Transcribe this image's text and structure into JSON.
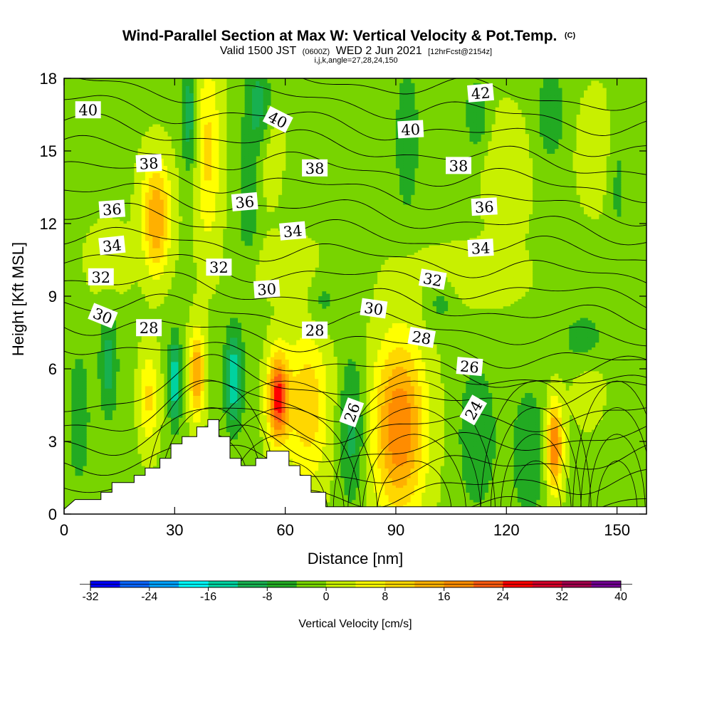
{
  "title": {
    "main": "Wind-Parallel Section at Max W: Vertical Velocity & Pot.Temp.",
    "tag": "(C)",
    "valid_prefix": "Valid 1500 JST",
    "valid_utc": "(0600Z)",
    "valid_date": "WED 2 Jun 2021",
    "forecast": "[12hrFcst@2154z]",
    "indices": "i,j,k,angle=27,28,24,150"
  },
  "chart_data": {
    "type": "heatmap",
    "title": "Wind-Parallel Section at Max W: Vertical Velocity & Pot.Temp.",
    "xlabel": "Distance [nm]",
    "ylabel": "Height [Kft MSL]",
    "xlim": [
      0,
      158
    ],
    "ylim": [
      0,
      18
    ],
    "x_ticks": [
      0,
      30,
      60,
      90,
      120,
      150
    ],
    "x_tick_labels": [
      "0",
      "30",
      "60",
      "90",
      "120",
      "150"
    ],
    "y_ticks": [
      0,
      3,
      6,
      9,
      12,
      15,
      18
    ],
    "y_tick_labels": [
      "0",
      "3",
      "6",
      "9",
      "12",
      "15",
      "18"
    ],
    "colorbar": {
      "title": "Vertical Velocity [cm/s]",
      "levels": [
        -32,
        -28,
        -24,
        -20,
        -16,
        -12,
        -8,
        -4,
        0,
        4,
        8,
        12,
        16,
        20,
        24,
        28,
        32,
        36,
        40
      ],
      "tick_labels": [
        "-32",
        "-24",
        "-16",
        "-8",
        "0",
        "8",
        "16",
        "24",
        "32",
        "40"
      ],
      "colors": [
        "#0000ff",
        "#0a64ff",
        "#00a0ff",
        "#00ffff",
        "#00d2a0",
        "#18b050",
        "#22aa22",
        "#78d400",
        "#c8f000",
        "#ffff00",
        "#ffd700",
        "#ffb000",
        "#ff8c00",
        "#ff5a10",
        "#ff0000",
        "#d20028",
        "#a0004b",
        "#700090"
      ]
    },
    "w_field": {
      "background": -1,
      "cells": [
        {
          "x": 25,
          "z": 12.5,
          "sx": 4,
          "sz": 2.2,
          "amp": 15
        },
        {
          "x": 25,
          "z": 11.0,
          "sx": 2.5,
          "sz": 1.5,
          "amp": 4
        },
        {
          "x": 39,
          "z": 15,
          "sx": 3.5,
          "sz": 4,
          "amp": 10
        },
        {
          "x": 36,
          "z": 5.8,
          "sx": 2,
          "sz": 1.8,
          "amp": 18
        },
        {
          "x": 23,
          "z": 4.8,
          "sx": 2.5,
          "sz": 2,
          "amp": 10
        },
        {
          "x": 58,
          "z": 4.8,
          "sx": 2.8,
          "sz": 1.8,
          "amp": 26
        },
        {
          "x": 66,
          "z": 4.5,
          "sx": 6,
          "sz": 3.2,
          "amp": 12
        },
        {
          "x": 91,
          "z": 3.6,
          "sx": 7,
          "sz": 3.6,
          "amp": 21
        },
        {
          "x": 133,
          "z": 2.8,
          "sx": 2.2,
          "sz": 1.8,
          "amp": 22
        },
        {
          "x": 108,
          "z": 9.8,
          "sx": 15,
          "sz": 1.2,
          "amp": 5
        },
        {
          "x": 60,
          "z": 10.2,
          "sx": 10,
          "sz": 1.2,
          "amp": 4
        },
        {
          "x": 120,
          "z": 14,
          "sx": 6,
          "sz": 2.5,
          "amp": 5
        },
        {
          "x": 145,
          "z": 15,
          "sx": 6,
          "sz": 2.5,
          "amp": 4
        },
        {
          "x": 55,
          "z": 15.5,
          "sx": 4,
          "sz": 2.5,
          "amp": 5
        },
        {
          "x": 12,
          "z": 10.5,
          "sx": 6,
          "sz": 1.5,
          "amp": 4
        },
        {
          "x": 142,
          "z": 5.5,
          "sx": 5,
          "sz": 2,
          "amp": 3
        },
        {
          "x": 30,
          "z": 5.5,
          "sx": 1.6,
          "sz": 1.8,
          "amp": -15
        },
        {
          "x": 46,
          "z": 5.6,
          "sx": 2.4,
          "sz": 2,
          "amp": -15
        },
        {
          "x": 12,
          "z": 6.2,
          "sx": 2.4,
          "sz": 2.2,
          "amp": -9
        },
        {
          "x": 34,
          "z": 16.5,
          "sx": 2,
          "sz": 2.5,
          "amp": -10
        },
        {
          "x": 53,
          "z": 16.8,
          "sx": 3.5,
          "sz": 2,
          "amp": -11
        },
        {
          "x": 50,
          "z": 13,
          "sx": 3,
          "sz": 3,
          "amp": -6
        },
        {
          "x": 78,
          "z": 3.5,
          "sx": 3.5,
          "sz": 3,
          "amp": -9
        },
        {
          "x": 112,
          "z": 3.2,
          "sx": 5,
          "sz": 3,
          "amp": -7
        },
        {
          "x": 126,
          "z": 2.5,
          "sx": 5,
          "sz": 3,
          "amp": -6
        },
        {
          "x": 102,
          "z": 9,
          "sx": 5,
          "sz": 1.2,
          "amp": -6
        },
        {
          "x": 93,
          "z": 15.5,
          "sx": 3,
          "sz": 3,
          "amp": -7
        },
        {
          "x": 112,
          "z": 16.5,
          "sx": 3,
          "sz": 1.5,
          "amp": -7
        },
        {
          "x": 132,
          "z": 16.5,
          "sx": 4,
          "sz": 2,
          "amp": -6
        },
        {
          "x": 150,
          "z": 14,
          "sx": 3,
          "sz": 3,
          "amp": -5
        },
        {
          "x": 141,
          "z": 7.2,
          "sx": 6,
          "sz": 1.2,
          "amp": -6
        },
        {
          "x": 4,
          "z": 4,
          "sx": 3,
          "sz": 3,
          "amp": -6
        },
        {
          "x": 70,
          "z": 8.8,
          "sx": 4,
          "sz": 1.3,
          "amp": -5
        }
      ]
    },
    "terrain": [
      [
        0,
        0.2
      ],
      [
        3,
        0.6
      ],
      [
        10,
        0.6
      ],
      [
        10,
        0.9
      ],
      [
        13,
        0.9
      ],
      [
        13,
        1.3
      ],
      [
        19,
        1.3
      ],
      [
        19,
        1.6
      ],
      [
        22,
        1.6
      ],
      [
        22,
        1.9
      ],
      [
        26,
        1.9
      ],
      [
        26,
        2.3
      ],
      [
        29,
        2.3
      ],
      [
        29,
        2.9
      ],
      [
        32,
        2.9
      ],
      [
        32,
        3.2
      ],
      [
        36,
        3.2
      ],
      [
        36,
        3.6
      ],
      [
        39,
        3.6
      ],
      [
        39,
        3.9
      ],
      [
        42,
        3.9
      ],
      [
        42,
        3.2
      ],
      [
        45,
        3.2
      ],
      [
        45,
        2.3
      ],
      [
        48,
        2.3
      ],
      [
        48,
        2.0
      ],
      [
        52,
        2.0
      ],
      [
        52,
        2.3
      ],
      [
        55,
        2.3
      ],
      [
        55,
        2.6
      ],
      [
        61,
        2.6
      ],
      [
        61,
        2.0
      ],
      [
        64,
        2.0
      ],
      [
        64,
        1.6
      ],
      [
        67,
        1.6
      ],
      [
        67,
        0.9
      ],
      [
        71,
        0.9
      ],
      [
        71,
        0.3
      ],
      [
        158,
        0.3
      ]
    ],
    "theta_levels": [
      22,
      23,
      24,
      25,
      26,
      27,
      28,
      29,
      30,
      31,
      32,
      33,
      34,
      35,
      36,
      37,
      38,
      39,
      40,
      41,
      42,
      43
    ],
    "theta_labels": [
      {
        "text": "40",
        "x": 6.5,
        "z": 16.7,
        "angle": 0
      },
      {
        "text": "38",
        "x": 23,
        "z": 14.5,
        "angle": -3
      },
      {
        "text": "36",
        "x": 13,
        "z": 12.6,
        "angle": -4
      },
      {
        "text": "34",
        "x": 13,
        "z": 11.1,
        "angle": -6
      },
      {
        "text": "32",
        "x": 10,
        "z": 9.8,
        "angle": 0
      },
      {
        "text": "30",
        "x": 10.5,
        "z": 8.2,
        "angle": 22
      },
      {
        "text": "28",
        "x": 23,
        "z": 7.7,
        "angle": 0
      },
      {
        "text": "40",
        "x": 58,
        "z": 16.3,
        "angle": 27
      },
      {
        "text": "36",
        "x": 49,
        "z": 12.9,
        "angle": -5
      },
      {
        "text": "32",
        "x": 42,
        "z": 10.2,
        "angle": 0
      },
      {
        "text": "30",
        "x": 55,
        "z": 9.3,
        "angle": -4
      },
      {
        "text": "38",
        "x": 68,
        "z": 14.3,
        "angle": 0
      },
      {
        "text": "34",
        "x": 62,
        "z": 11.7,
        "angle": -5
      },
      {
        "text": "28",
        "x": 68,
        "z": 7.6,
        "angle": 0
      },
      {
        "text": "40",
        "x": 94,
        "z": 15.9,
        "angle": -3
      },
      {
        "text": "30",
        "x": 84,
        "z": 8.5,
        "angle": 8
      },
      {
        "text": "26",
        "x": 78,
        "z": 4.2,
        "angle": -70
      },
      {
        "text": "32",
        "x": 100,
        "z": 9.7,
        "angle": 10
      },
      {
        "text": "28",
        "x": 97,
        "z": 7.3,
        "angle": 10
      },
      {
        "text": "38",
        "x": 107,
        "z": 14.4,
        "angle": 0
      },
      {
        "text": "36",
        "x": 114,
        "z": 12.7,
        "angle": -3
      },
      {
        "text": "34",
        "x": 113,
        "z": 11.0,
        "angle": -3
      },
      {
        "text": "42",
        "x": 113,
        "z": 17.4,
        "angle": -5
      },
      {
        "text": "26",
        "x": 110,
        "z": 6.1,
        "angle": 5
      },
      {
        "text": "24",
        "x": 111,
        "z": 4.3,
        "angle": -60
      }
    ]
  }
}
